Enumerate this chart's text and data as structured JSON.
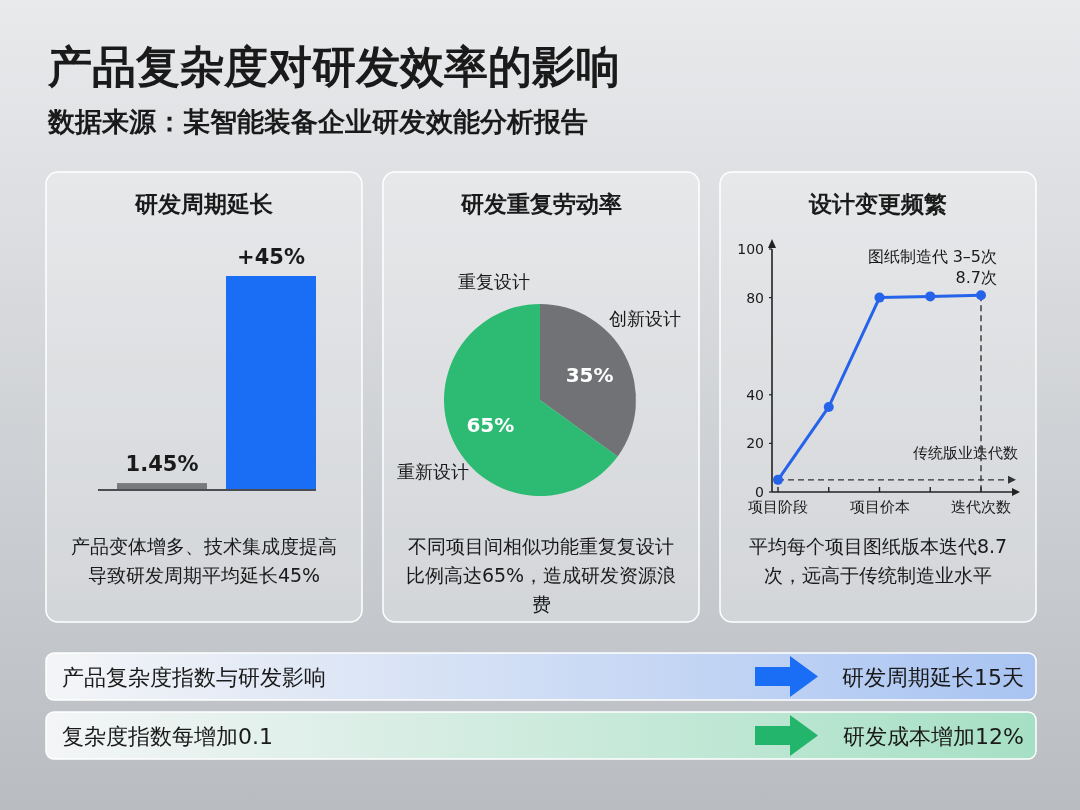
{
  "chart_data": [
    {
      "type": "other",
      "title": "产品复杂度对研发效率的影响",
      "subtitle": "数据来源：某智能装备企业研发效能分析报告",
      "annotations": [
        "产品复杂度指数与研发影响",
        "研发周期延长15天",
        "复杂度指数每增加0.1",
        "研发成本增加12%"
      ]
    },
    {
      "type": "bar",
      "title": "研发周期延长",
      "categories": [
        null,
        null
      ],
      "values": [
        1.45,
        45
      ],
      "colors": [
        "#77797c",
        "#1a6ef5"
      ],
      "value_labels": [
        "1.45%",
        "+45%"
      ],
      "annotations": [
        "产品变体增多、技术集成度提高导致研发周期平均延长45%"
      ]
    },
    {
      "type": "pie",
      "title": "研发重复劳动率",
      "categories": [
        "创新设计",
        "重复设计"
      ],
      "values": [
        35,
        65
      ],
      "colors": [
        "#707275",
        "#2dbb73"
      ],
      "value_labels": [
        "35%",
        "65%"
      ],
      "annotations": [
        "重新设计",
        "不同项目间相似功能重复复设计比例高达65%，造成研发资源浪费"
      ]
    },
    {
      "type": "line",
      "title": "设计变更频繁",
      "categories": [
        "项目阶段",
        null,
        "项目价本",
        null,
        "迭代次数"
      ],
      "values": [
        5,
        35,
        80,
        80.5,
        81
      ],
      "color": "#2563eb",
      "marker": "circle",
      "ylim": [
        0,
        100
      ],
      "yticks": [
        0,
        20,
        40,
        80,
        100
      ],
      "ref_lines": [
        {
          "axis": "y",
          "value": 5,
          "label": "传统版业迭代数",
          "line_style": "dashed"
        },
        {
          "axis": "x",
          "value": "迭代次数",
          "label": "图纸制造代 3–5次",
          "line_style": "dashed"
        }
      ],
      "annotations": [
        {
          "text": "8.7次",
          "x": "迭代次数",
          "y": 81
        },
        "平均每个项目图纸版本迭代8.7次，远高于传统制造业水平"
      ]
    }
  ]
}
